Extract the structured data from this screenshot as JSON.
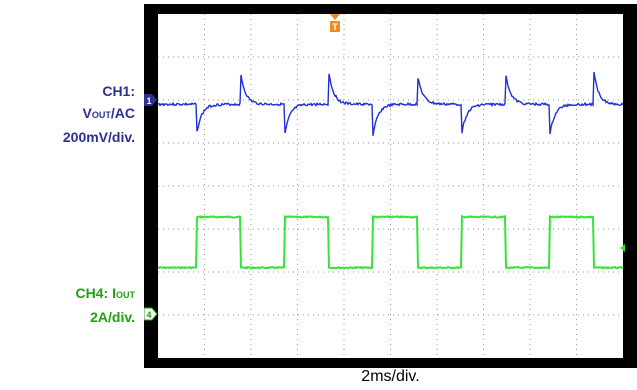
{
  "chart_data": {
    "type": "line",
    "xlabel": "2ms/div.",
    "x_divisions": 10,
    "y_divisions": 8,
    "grid": true,
    "background": "#000000",
    "period_divisions": 1.9,
    "series": [
      {
        "label_line1": "CH1:",
        "label_main_prefix": "V",
        "label_sub": "OUT",
        "label_suffix": "/AC",
        "label_line3": "200mV/div.",
        "marker": "1",
        "color": "#1f2fd8",
        "waveform": "AC-coupled ripple with overshoot spikes at each load step"
      },
      {
        "label_prefix": "CH4: I",
        "label_sub": "OUT",
        "label_line2": "2A/div.",
        "marker": "4",
        "color": "#37e23a",
        "waveform": "square load current pulses"
      }
    ],
    "trigger_marker": "T"
  },
  "colors": {
    "ch1_text": "#2e3192",
    "ch4_text": "#22a012"
  }
}
